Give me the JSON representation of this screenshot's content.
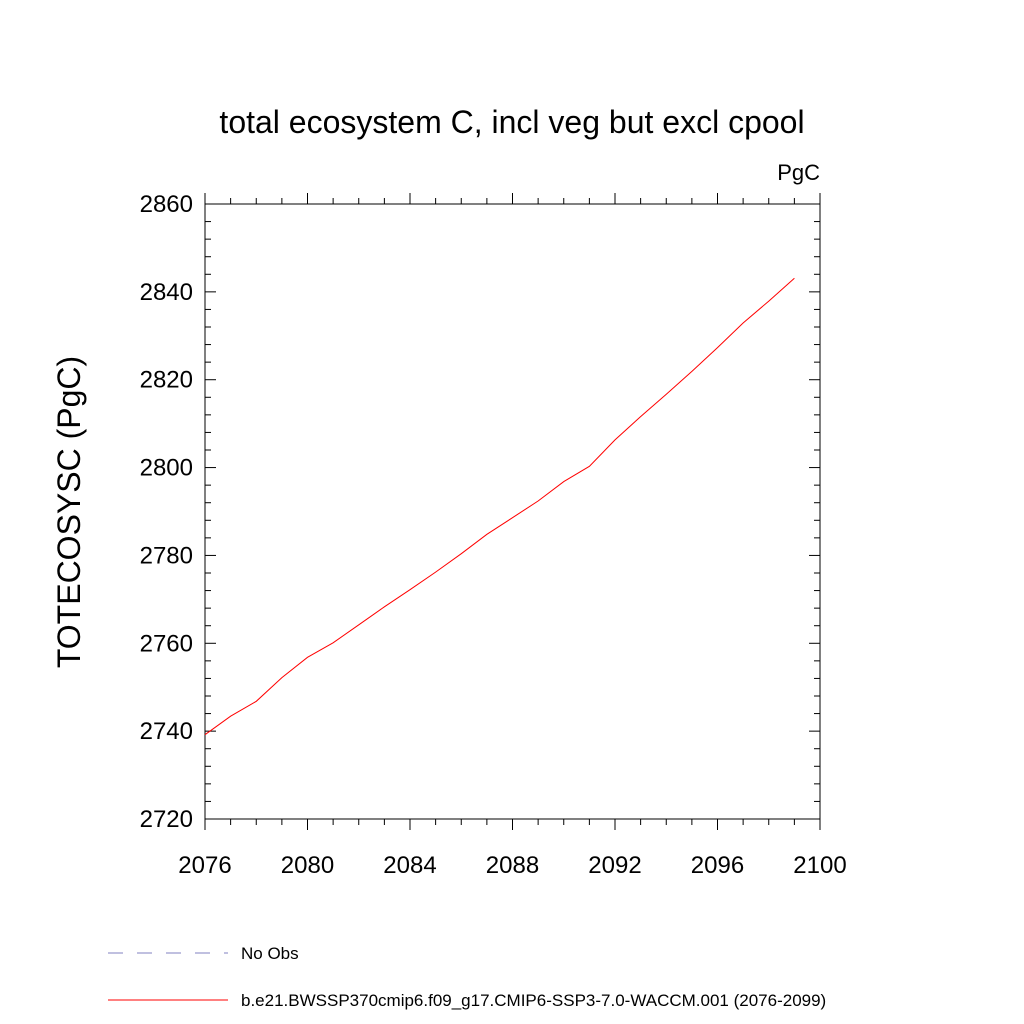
{
  "chart_data": {
    "type": "line",
    "title": "total ecosystem C, incl veg but excl cpool",
    "units": "PgC",
    "xlabel": "",
    "ylabel": "TOTECOSYSC  (PgC)",
    "xlim": [
      2076,
      2100
    ],
    "ylim": [
      2720,
      2860
    ],
    "xticks": [
      2076,
      2080,
      2084,
      2088,
      2092,
      2096,
      2100
    ],
    "yticks": [
      2720,
      2740,
      2760,
      2780,
      2800,
      2820,
      2840,
      2860
    ],
    "grid": false,
    "legend_position": "bottom-left",
    "series": [
      {
        "name": "No Obs",
        "style": "dashed",
        "color": "#8080c0",
        "x": [],
        "y": []
      },
      {
        "name": "b.e21.BWSSP370cmip6.f09_g17.CMIP6-SSP3-7.0-WACCM.001 (2076-2099)",
        "style": "solid",
        "color": "#ff0000",
        "x": [
          2076,
          2077,
          2078,
          2079,
          2080,
          2081,
          2082,
          2083,
          2084,
          2085,
          2086,
          2087,
          2088,
          2089,
          2090,
          2091,
          2092,
          2093,
          2094,
          2095,
          2096,
          2097,
          2098,
          2099
        ],
        "y": [
          2739.2,
          2743.4,
          2746.8,
          2752.2,
          2756.8,
          2760.1,
          2764.2,
          2768.3,
          2772.2,
          2776.2,
          2780.4,
          2784.8,
          2788.6,
          2792.4,
          2796.8,
          2800.3,
          2806.3,
          2811.6,
          2816.7,
          2821.9,
          2827.3,
          2832.9,
          2837.9,
          2843.1
        ]
      }
    ]
  }
}
